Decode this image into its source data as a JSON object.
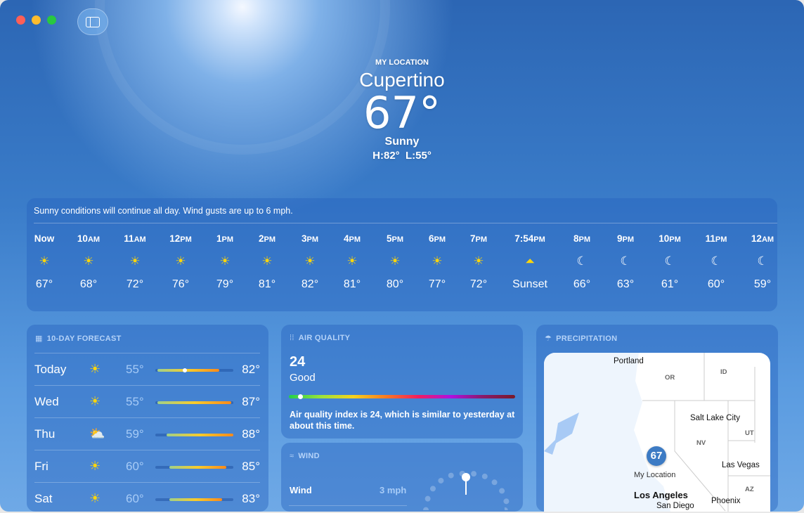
{
  "window": {
    "controls": [
      "close",
      "minimize",
      "zoom"
    ],
    "sidebar_toggle_icon": "sidebar-icon"
  },
  "current": {
    "label": "MY LOCATION",
    "city": "Cupertino",
    "temp": "67°",
    "condition": "Sunny",
    "high_low": "H:82°  L:55°"
  },
  "hourly": {
    "summary": "Sunny conditions will continue all day. Wind gusts are up to 6 mph.",
    "items": [
      {
        "time": "Now",
        "suffix": "",
        "icon": "sun",
        "temp": "67°"
      },
      {
        "time": "10",
        "suffix": "AM",
        "icon": "sun",
        "temp": "68°"
      },
      {
        "time": "11",
        "suffix": "AM",
        "icon": "sun",
        "temp": "72°"
      },
      {
        "time": "12",
        "suffix": "PM",
        "icon": "sun",
        "temp": "76°"
      },
      {
        "time": "1",
        "suffix": "PM",
        "icon": "sun",
        "temp": "79°"
      },
      {
        "time": "2",
        "suffix": "PM",
        "icon": "sun",
        "temp": "81°"
      },
      {
        "time": "3",
        "suffix": "PM",
        "icon": "sun",
        "temp": "82°"
      },
      {
        "time": "4",
        "suffix": "PM",
        "icon": "sun",
        "temp": "81°"
      },
      {
        "time": "5",
        "suffix": "PM",
        "icon": "sun",
        "temp": "80°"
      },
      {
        "time": "6",
        "suffix": "PM",
        "icon": "sun",
        "temp": "77°"
      },
      {
        "time": "7",
        "suffix": "PM",
        "icon": "sun",
        "temp": "72°"
      },
      {
        "time": "7:54",
        "suffix": "PM",
        "icon": "sunset",
        "temp": "Sunset"
      },
      {
        "time": "8",
        "suffix": "PM",
        "icon": "moon",
        "temp": "66°"
      },
      {
        "time": "9",
        "suffix": "PM",
        "icon": "moon",
        "temp": "63°"
      },
      {
        "time": "10",
        "suffix": "PM",
        "icon": "moon",
        "temp": "61°"
      },
      {
        "time": "11",
        "suffix": "PM",
        "icon": "moon",
        "temp": "60°"
      },
      {
        "time": "12",
        "suffix": "AM",
        "icon": "moon",
        "temp": "59°"
      }
    ]
  },
  "forecast": {
    "title": "10-DAY FORECAST",
    "icon": "calendar-icon",
    "days": [
      {
        "day": "Today",
        "icon": "sun",
        "low": "55°",
        "high": "82°",
        "low_val": 55,
        "high_val": 82,
        "current": 67
      },
      {
        "day": "Wed",
        "icon": "sun",
        "low": "55°",
        "high": "87°",
        "low_val": 55,
        "high_val": 87
      },
      {
        "day": "Thu",
        "icon": "partly-cloudy",
        "low": "59°",
        "high": "88°",
        "low_val": 59,
        "high_val": 88
      },
      {
        "day": "Fri",
        "icon": "sun",
        "low": "60°",
        "high": "85°",
        "low_val": 60,
        "high_val": 85
      },
      {
        "day": "Sat",
        "icon": "sun",
        "low": "60°",
        "high": "83°",
        "low_val": 60,
        "high_val": 83
      }
    ]
  },
  "air_quality": {
    "title": "AIR QUALITY",
    "icon": "air-quality-icon",
    "value": "24",
    "category": "Good",
    "index_fraction": 0.05,
    "description": "Air quality index is 24, which is similar to yesterday at about this time."
  },
  "wind": {
    "title": "WIND",
    "icon": "wind-icon",
    "label": "Wind",
    "value": "3 mph"
  },
  "precipitation": {
    "title": "PRECIPITATION",
    "icon": "umbrella-icon",
    "map": {
      "pin_temp": "67",
      "pin_label": "My Location",
      "cities": [
        "Portland",
        "Salt Lake City",
        "Las Vegas",
        "Los Angeles",
        "Phoenix",
        "San Diego"
      ],
      "states": [
        "OR",
        "ID",
        "NV",
        "UT",
        "AZ"
      ]
    }
  }
}
